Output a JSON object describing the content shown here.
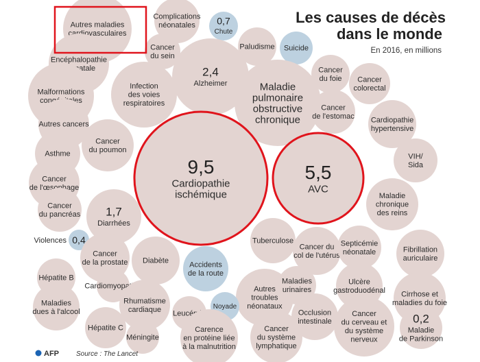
{
  "header": {
    "title_line1": "Les causes de décès",
    "title_line2": "dans le monde",
    "subtitle": "En 2016, en millions"
  },
  "footer": {
    "agency": "AFP",
    "source": "Source : The Lancet"
  },
  "colors": {
    "bubble_default": "#e3d4d1",
    "bubble_blue": "#bdd1e0",
    "highlight": "#e0141c"
  },
  "chart_data": {
    "type": "bubble",
    "title": "Les causes de décès dans le monde",
    "subtitle": "En 2016, en millions",
    "source": "The Lancet",
    "bubbles": [
      {
        "label": "Autres maladies cardiovasculaires",
        "lines": [
          "Autres maladies",
          "cardiovasculaires"
        ],
        "value": null,
        "highlight_box": true
      },
      {
        "label": "Complications néonatales",
        "lines": [
          "Complications",
          "néonatales"
        ],
        "value": null
      },
      {
        "label": "Chute",
        "lines": [
          "Chute"
        ],
        "value": 0.7,
        "value_label": "0,7",
        "color": "blue"
      },
      {
        "label": "Cancer du sein",
        "lines": [
          "Cancer",
          "du sein"
        ],
        "value": null
      },
      {
        "label": "Paludisme",
        "lines": [
          "Paludisme"
        ],
        "value": null
      },
      {
        "label": "Suicide",
        "lines": [
          "Suicide"
        ],
        "value": null,
        "color": "blue"
      },
      {
        "label": "Encéphalopathie néonatale",
        "lines": [
          "Encéphalopathie",
          "néonatale"
        ],
        "value": null
      },
      {
        "label": "Alzheimer",
        "lines": [
          "Alzheimer"
        ],
        "value": 2.4,
        "value_label": "2,4"
      },
      {
        "label": "Cancer du foie",
        "lines": [
          "Cancer",
          "du foie"
        ],
        "value": null
      },
      {
        "label": "Malformations congénitales",
        "lines": [
          "Malformations",
          "congénitales"
        ],
        "value": null
      },
      {
        "label": "Infection des voies respiratoires",
        "lines": [
          "Infection",
          "des voies",
          "respiratoires"
        ],
        "value": null
      },
      {
        "label": "Maladie pulmonaire obstructive chronique",
        "lines": [
          "Maladie",
          "pulmonaire",
          "obstructive",
          "chronique"
        ],
        "value": null
      },
      {
        "label": "Cancer colorectal",
        "lines": [
          "Cancer",
          "colorectal"
        ],
        "value": null
      },
      {
        "label": "Cancer de l'estomac",
        "lines": [
          "Cancer",
          "de l'estomac"
        ],
        "value": null
      },
      {
        "label": "Cardiopathie hypertensive",
        "lines": [
          "Cardiopathie",
          "hypertensive"
        ],
        "value": null
      },
      {
        "label": "Autres cancers",
        "lines": [
          "Autres cancers"
        ],
        "value": null
      },
      {
        "label": "Cancer du poumon",
        "lines": [
          "Cancer",
          "du poumon"
        ],
        "value": null
      },
      {
        "label": "Asthme",
        "lines": [
          "Asthme"
        ],
        "value": null
      },
      {
        "label": "Cardiopathie ischémique",
        "lines": [
          "Cardiopathie",
          "ischémique"
        ],
        "value": 9.5,
        "value_label": "9,5",
        "highlight_ring": true
      },
      {
        "label": "AVC",
        "lines": [
          "AVC"
        ],
        "value": 5.5,
        "value_label": "5,5",
        "highlight_ring": true
      },
      {
        "label": "VIH/Sida",
        "lines": [
          "VIH/",
          "Sida"
        ],
        "value": null
      },
      {
        "label": "Cancer de l'œsophage",
        "lines": [
          "Cancer",
          "de l'œsophage"
        ],
        "value": null
      },
      {
        "label": "Maladie chronique des reins",
        "lines": [
          "Maladie",
          "chronique",
          "des reins"
        ],
        "value": null
      },
      {
        "label": "Cancer du pancréas",
        "lines": [
          "Cancer",
          "du pancréas"
        ],
        "value": null
      },
      {
        "label": "Diarrhées",
        "lines": [
          "Diarrhées"
        ],
        "value": 1.7,
        "value_label": "1,7"
      },
      {
        "label": "Violences",
        "lines": [
          "Violences"
        ],
        "value": 0.4,
        "value_label": "0,4",
        "color": "blue"
      },
      {
        "label": "Tuberculose",
        "lines": [
          "Tuberculose"
        ],
        "value": null
      },
      {
        "label": "Cancer du col de l'utérus",
        "lines": [
          "Cancer du",
          "col de l'utérus"
        ],
        "value": null
      },
      {
        "label": "Septicémie néonatale",
        "lines": [
          "Septicémie",
          "néonatale"
        ],
        "value": null
      },
      {
        "label": "Fibrillation auriculaire",
        "lines": [
          "Fibrillation",
          "auriculaire"
        ],
        "value": null
      },
      {
        "label": "Cancer de la prostate",
        "lines": [
          "Cancer",
          "de la prostate"
        ],
        "value": null
      },
      {
        "label": "Diabète",
        "lines": [
          "Diabète"
        ],
        "value": null
      },
      {
        "label": "Accidents de la route",
        "lines": [
          "Accidents",
          "de la route"
        ],
        "value": null,
        "color": "blue"
      },
      {
        "label": "Hépatite B",
        "lines": [
          "Hépatite B"
        ],
        "value": null
      },
      {
        "label": "Autres troubles néonataux",
        "lines": [
          "Autres",
          "troubles",
          "néonataux"
        ],
        "value": null
      },
      {
        "label": "Maladies urinaires",
        "lines": [
          "Maladies",
          "urinaires"
        ],
        "value": null
      },
      {
        "label": "Ulcère gastroduodénal",
        "lines": [
          "Ulcère",
          "gastroduodénal"
        ],
        "value": null
      },
      {
        "label": "Cardiomyopathie",
        "lines": [
          "Cardiomyopathie"
        ],
        "value": null
      },
      {
        "label": "Cirrhose et maladies du foie",
        "lines": [
          "Cirrhose et",
          "maladies du foie"
        ],
        "value": null
      },
      {
        "label": "Maladies dues à l'alcool",
        "lines": [
          "Maladies",
          "dues à l'alcool"
        ],
        "value": null
      },
      {
        "label": "Rhumatisme cardiaque",
        "lines": [
          "Rhumatisme",
          "cardiaque"
        ],
        "value": null
      },
      {
        "label": "Noyade",
        "lines": [
          "Noyade"
        ],
        "value": null,
        "color": "blue"
      },
      {
        "label": "Leucémie",
        "lines": [
          "Leucémie"
        ],
        "value": null
      },
      {
        "label": "Occlusion intestinale",
        "lines": [
          "Occlusion",
          "intestinale"
        ],
        "value": null
      },
      {
        "label": "Hépatite C",
        "lines": [
          "Hépatite C"
        ],
        "value": null
      },
      {
        "label": "Cancer du cerveau et du système nerveux",
        "lines": [
          "Cancer",
          "du cerveau et",
          "du système",
          "nerveux"
        ],
        "value": null
      },
      {
        "label": "Maladie de Parkinson",
        "lines": [
          "Maladie",
          "de Parkinson"
        ],
        "value": 0.2,
        "value_label": "0,2"
      },
      {
        "label": "Méningite",
        "lines": [
          "Méningite"
        ],
        "value": null
      },
      {
        "label": "Carence en protéine liée à la malnutrition",
        "lines": [
          "Carence",
          "en protéine liée",
          "à la malnutrition"
        ],
        "value": null
      },
      {
        "label": "Cancer du système lymphatique",
        "lines": [
          "Cancer",
          "du système",
          "lymphatique"
        ],
        "value": null
      }
    ]
  }
}
